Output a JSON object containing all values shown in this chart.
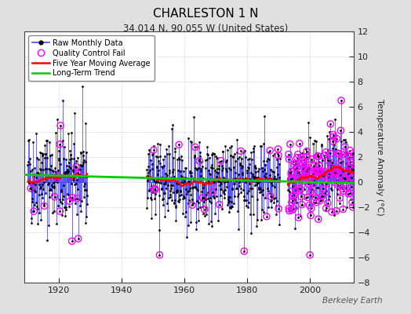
{
  "title": "CHARLESTON 1 N",
  "subtitle": "34.014 N, 90.055 W (United States)",
  "ylabel": "Temperature Anomaly (°C)",
  "watermark": "Berkeley Earth",
  "xlim": [
    1909,
    2014
  ],
  "ylim": [
    -8,
    12
  ],
  "yticks": [
    -8,
    -6,
    -4,
    -2,
    0,
    2,
    4,
    6,
    8,
    10,
    12
  ],
  "xticks": [
    1920,
    1940,
    1960,
    1980,
    2000
  ],
  "bg_color": "#e0e0e0",
  "plot_bg_color": "#ffffff",
  "raw_line_color": "#4444ff",
  "raw_dot_color": "#000000",
  "qc_fail_color": "#ff00ff",
  "moving_avg_color": "#ff0000",
  "trend_color": "#00cc00",
  "seed": 42,
  "period1_start": 1910.0,
  "period1_end": 1929.0,
  "period2_start": 1948.0,
  "period2_end": 1990.5,
  "period3_start": 1993.0,
  "period3_end": 2014.0
}
